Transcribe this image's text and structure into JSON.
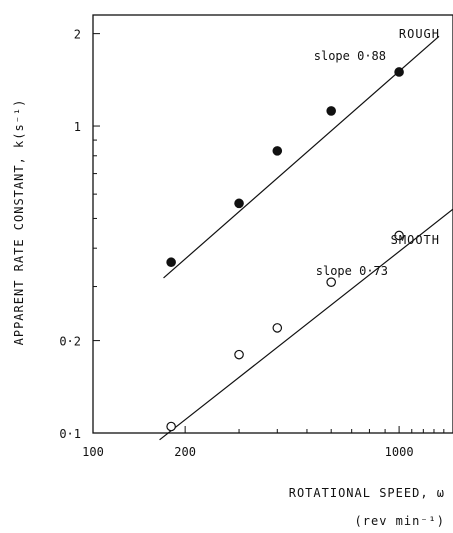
{
  "chart_data": {
    "type": "scatter",
    "x_scale": "log",
    "y_scale": "log",
    "xlim": [
      100,
      1500
    ],
    "ylim": [
      0.1,
      2.3
    ],
    "xticks": [
      100,
      200,
      1000
    ],
    "xtick_labels": [
      "100",
      "200",
      "1000"
    ],
    "yticks": [
      0.1,
      0.2,
      1,
      2
    ],
    "ytick_labels": [
      "0·1",
      "0·2",
      "1",
      "2"
    ],
    "ylabel": "APPARENT RATE CONSTANT, k(s⁻¹)",
    "xlabel": "ROTATIONAL SPEED, ω",
    "xlabel_unit": "(rev min⁻¹)",
    "grid": false,
    "series": [
      {
        "name": "ROUGH",
        "marker": "filled-circle",
        "annotation": "slope 0·88",
        "points": [
          {
            "x": 180,
            "y": 0.36
          },
          {
            "x": 300,
            "y": 0.56
          },
          {
            "x": 400,
            "y": 0.83
          },
          {
            "x": 600,
            "y": 1.12
          },
          {
            "x": 1000,
            "y": 1.5
          }
        ],
        "fit": {
          "x": [
            170,
            1350
          ],
          "y": [
            0.32,
            1.96
          ]
        }
      },
      {
        "name": "SMOOTH",
        "marker": "open-circle",
        "annotation": "slope 0·73",
        "points": [
          {
            "x": 180,
            "y": 0.105
          },
          {
            "x": 300,
            "y": 0.18
          },
          {
            "x": 400,
            "y": 0.22
          },
          {
            "x": 600,
            "y": 0.31
          },
          {
            "x": 1000,
            "y": 0.44
          }
        ],
        "fit": {
          "x": [
            165,
            1550
          ],
          "y": [
            0.095,
            0.55
          ]
        }
      }
    ],
    "colors": {
      "axis": "#111111",
      "marker": "#111111",
      "line": "#111111",
      "background": "#ffffff"
    }
  }
}
